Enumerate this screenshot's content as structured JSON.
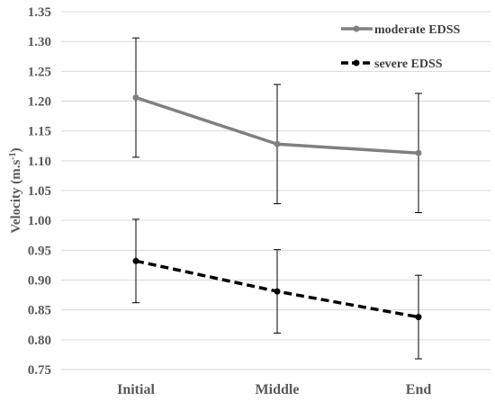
{
  "chart_data": {
    "type": "line",
    "categories": [
      "Initial",
      "Middle",
      "End"
    ],
    "ylabel": "Velocity (m.s",
    "ylabel_sup": "-1",
    "ylabel_close": ")",
    "ylim": [
      0.75,
      1.35
    ],
    "y_ticks": [
      "0.75",
      "0.80",
      "0.85",
      "0.90",
      "0.95",
      "1.00",
      "1.05",
      "1.10",
      "1.15",
      "1.20",
      "1.25",
      "1.30",
      "1.35"
    ],
    "grid": "horizontal",
    "legend_position": "top-right",
    "series": [
      {
        "name": "moderate EDSS",
        "values": [
          1.206,
          1.128,
          1.113
        ],
        "error": [
          0.1,
          0.1,
          0.1
        ],
        "color": "#808080",
        "line_style": "solid"
      },
      {
        "name": "severe EDSS",
        "values": [
          0.932,
          0.881,
          0.838
        ],
        "error": [
          0.07,
          0.07,
          0.07
        ],
        "color": "#000000",
        "line_style": "dashed"
      }
    ]
  }
}
